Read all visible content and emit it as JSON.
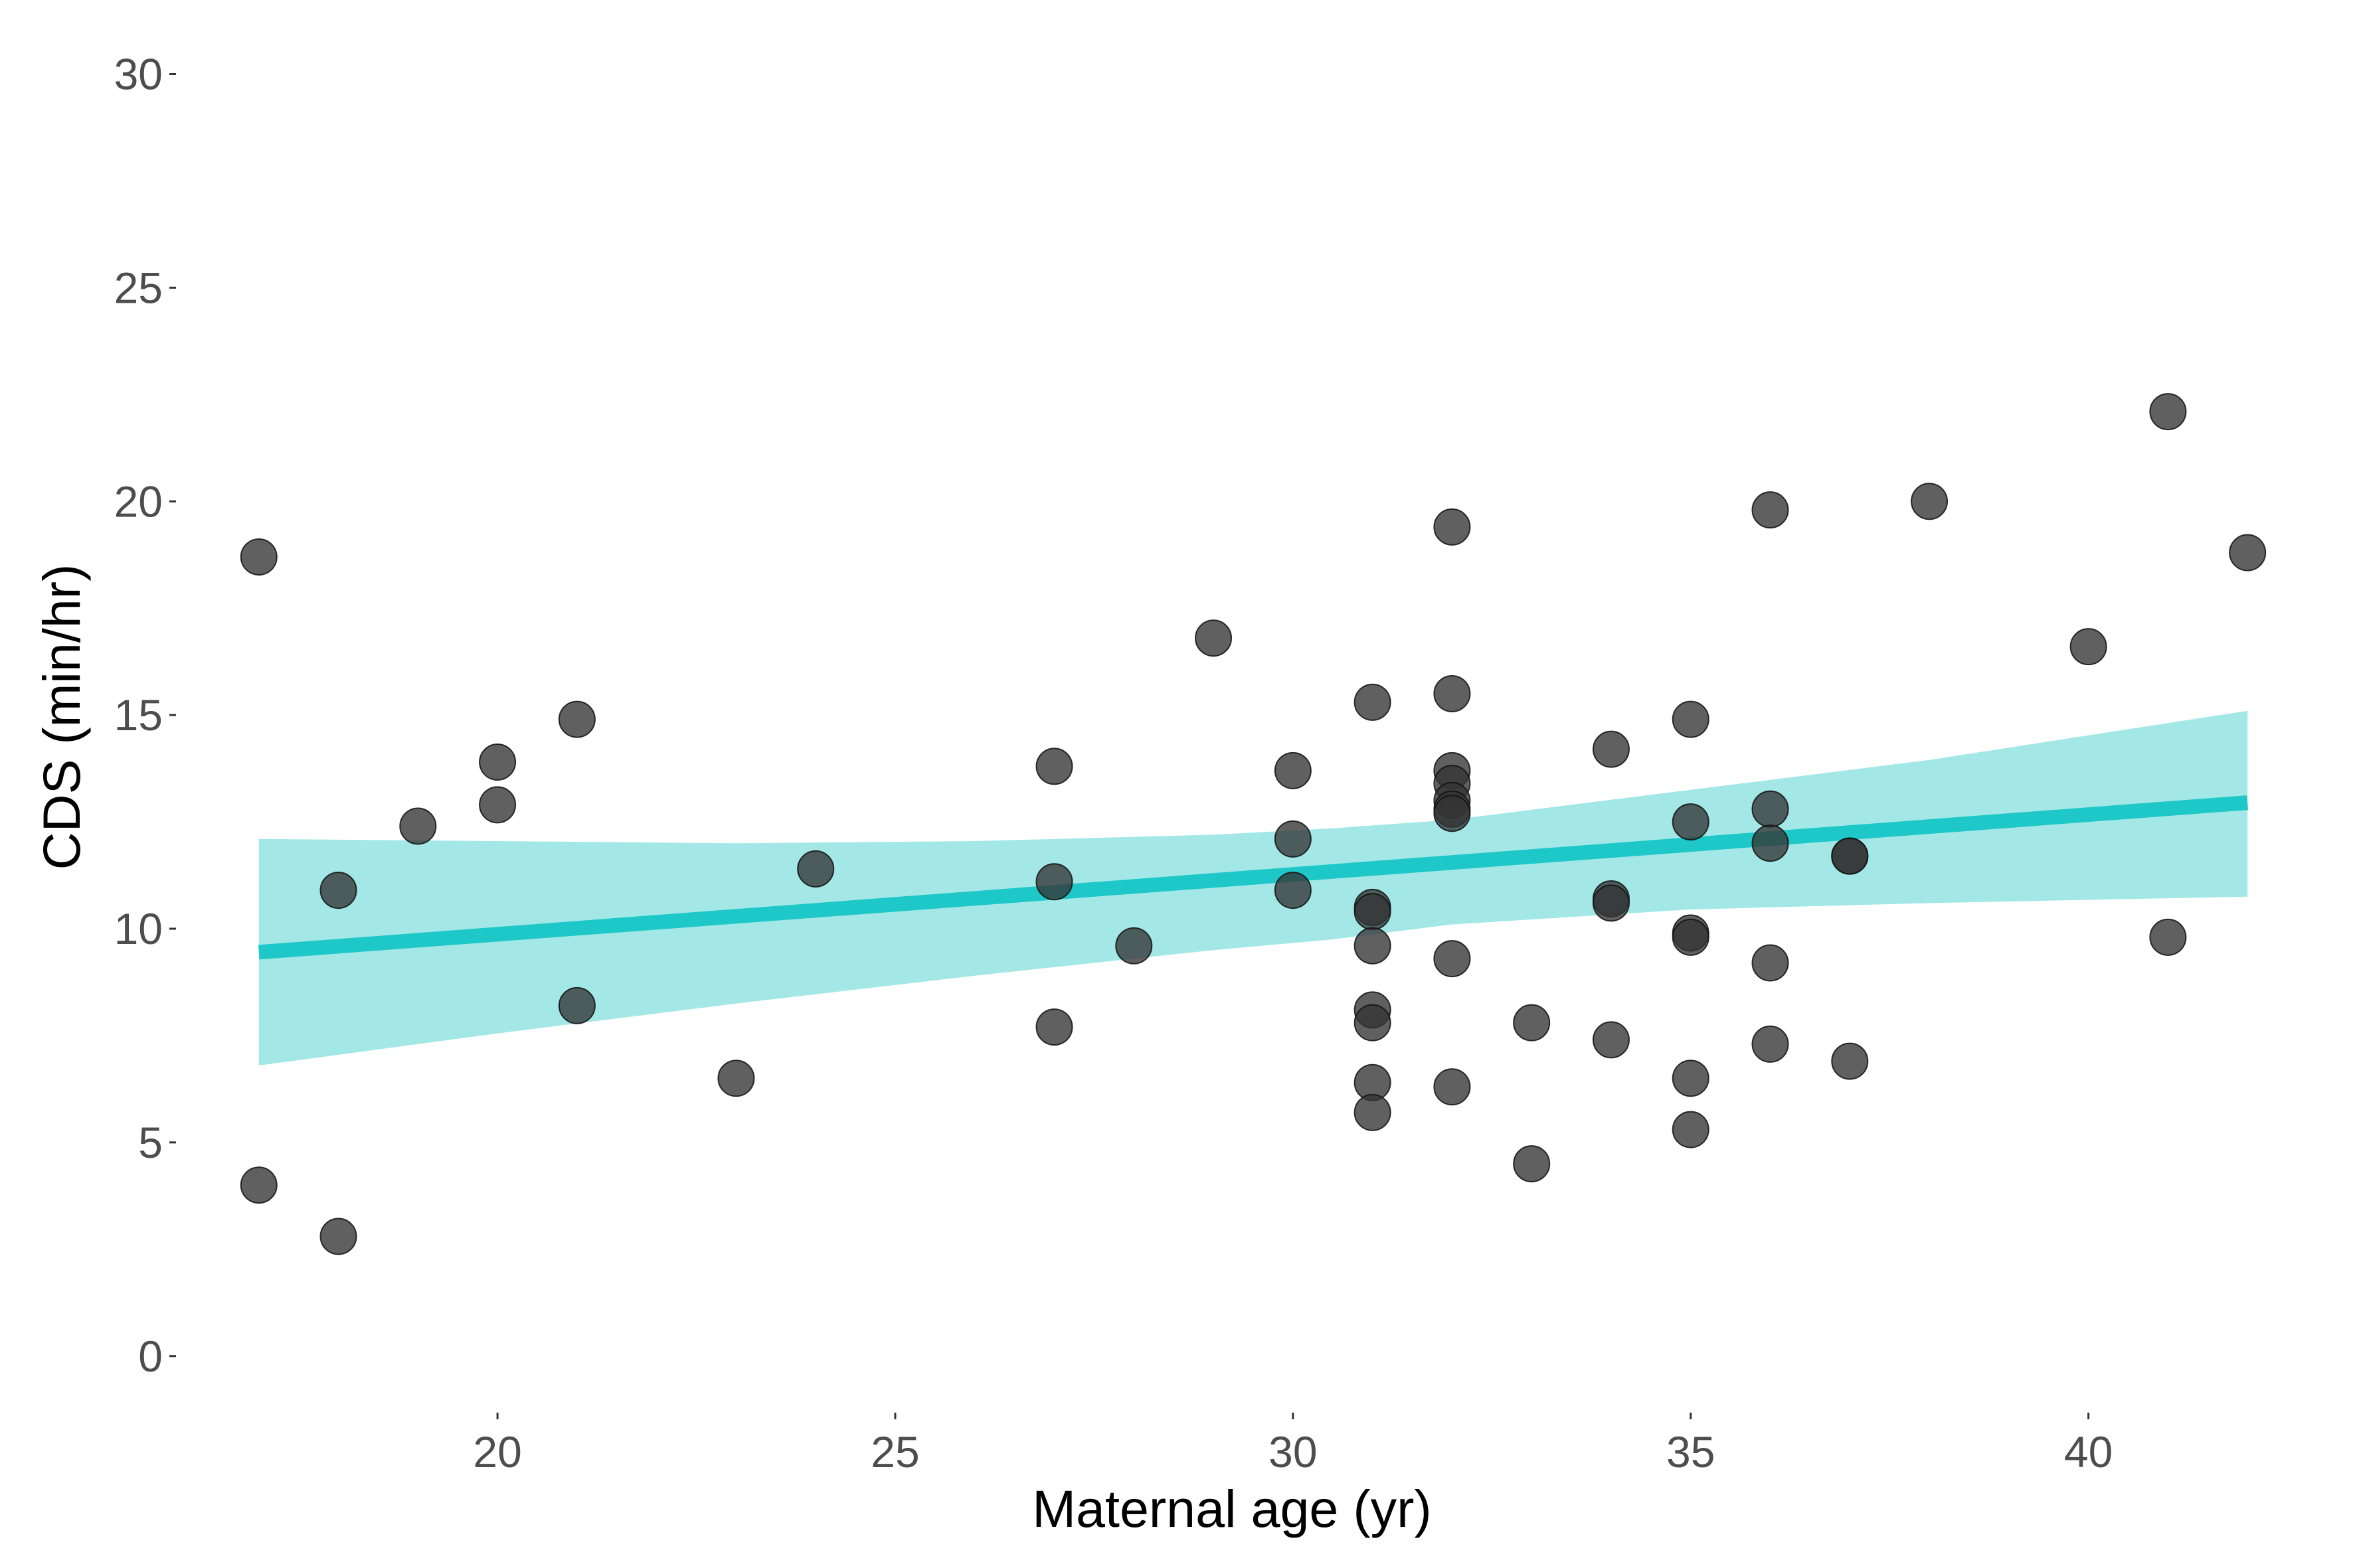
{
  "chart_data": {
    "type": "scatter",
    "title": "",
    "xlabel": "Maternal age (yr)",
    "ylabel": "CDS (min/hr)",
    "xlim": [
      16.0,
      42.8
    ],
    "ylim": [
      -1.2,
      30.8
    ],
    "x_ticks": [
      20,
      25,
      30,
      35,
      40
    ],
    "y_ticks": [
      0,
      5,
      10,
      15,
      20,
      25,
      30
    ],
    "grid": false,
    "legend": "none",
    "colors": {
      "points": "#333333",
      "fit_line": "#1EC8C8",
      "ribbon": "#A3E8E6"
    },
    "points": [
      {
        "x": 17,
        "y": 18.7
      },
      {
        "x": 17,
        "y": 4.0
      },
      {
        "x": 18,
        "y": 10.9
      },
      {
        "x": 18,
        "y": 2.8
      },
      {
        "x": 19,
        "y": 12.4
      },
      {
        "x": 20,
        "y": 13.9
      },
      {
        "x": 20,
        "y": 12.9
      },
      {
        "x": 21,
        "y": 14.9
      },
      {
        "x": 21,
        "y": 8.2
      },
      {
        "x": 23,
        "y": 6.5
      },
      {
        "x": 24,
        "y": 11.4
      },
      {
        "x": 27,
        "y": 13.8
      },
      {
        "x": 27,
        "y": 11.1
      },
      {
        "x": 27,
        "y": 7.7
      },
      {
        "x": 28,
        "y": 9.6
      },
      {
        "x": 29,
        "y": 16.8
      },
      {
        "x": 30,
        "y": 13.7
      },
      {
        "x": 30,
        "y": 12.1
      },
      {
        "x": 30,
        "y": 10.9
      },
      {
        "x": 31,
        "y": 15.3
      },
      {
        "x": 31,
        "y": 10.5
      },
      {
        "x": 31,
        "y": 10.4
      },
      {
        "x": 31,
        "y": 9.6
      },
      {
        "x": 31,
        "y": 8.1
      },
      {
        "x": 31,
        "y": 7.8
      },
      {
        "x": 31,
        "y": 6.4
      },
      {
        "x": 31,
        "y": 5.7
      },
      {
        "x": 32,
        "y": 19.4
      },
      {
        "x": 32,
        "y": 15.5
      },
      {
        "x": 32,
        "y": 13.7
      },
      {
        "x": 32,
        "y": 13.4
      },
      {
        "x": 32,
        "y": 13.0
      },
      {
        "x": 32,
        "y": 12.8
      },
      {
        "x": 32,
        "y": 12.7
      },
      {
        "x": 32,
        "y": 9.3
      },
      {
        "x": 32,
        "y": 6.3
      },
      {
        "x": 33,
        "y": 7.8
      },
      {
        "x": 33,
        "y": 4.5
      },
      {
        "x": 34,
        "y": 14.2
      },
      {
        "x": 34,
        "y": 10.7
      },
      {
        "x": 34,
        "y": 10.6
      },
      {
        "x": 34,
        "y": 7.4
      },
      {
        "x": 35,
        "y": 14.9
      },
      {
        "x": 35,
        "y": 12.5
      },
      {
        "x": 35,
        "y": 9.9
      },
      {
        "x": 35,
        "y": 9.8
      },
      {
        "x": 35,
        "y": 6.5
      },
      {
        "x": 35,
        "y": 5.3
      },
      {
        "x": 36,
        "y": 19.8
      },
      {
        "x": 36,
        "y": 12.8
      },
      {
        "x": 36,
        "y": 12.0
      },
      {
        "x": 36,
        "y": 9.2
      },
      {
        "x": 36,
        "y": 7.3
      },
      {
        "x": 37,
        "y": 11.7
      },
      {
        "x": 37,
        "y": 11.7
      },
      {
        "x": 37,
        "y": 6.9
      },
      {
        "x": 38,
        "y": 20.0
      },
      {
        "x": 40,
        "y": 16.6
      },
      {
        "x": 41,
        "y": 22.1
      },
      {
        "x": 41,
        "y": 9.8
      },
      {
        "x": 42,
        "y": 18.8
      }
    ],
    "fit": {
      "x": [
        17,
        42
      ],
      "y": [
        9.45,
        12.95
      ]
    },
    "ribbon": {
      "x": [
        17,
        20,
        23,
        26,
        29,
        30.5,
        32,
        35,
        38,
        42
      ],
      "lower": [
        6.8,
        7.55,
        8.25,
        8.9,
        9.5,
        9.75,
        10.1,
        10.45,
        10.6,
        10.75
      ],
      "upper": [
        12.1,
        12.05,
        12.0,
        12.05,
        12.2,
        12.35,
        12.55,
        13.25,
        13.95,
        15.1
      ]
    }
  }
}
